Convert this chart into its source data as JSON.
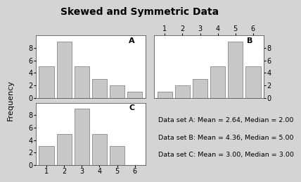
{
  "title": "Skewed and Symmetric Data",
  "bar_color": "#c8c8c8",
  "bar_edge_color": "#888888",
  "background_color": "#d4d4d4",
  "plot_background": "#ffffff",
  "categories": [
    1,
    2,
    3,
    4,
    5,
    6
  ],
  "data_A": [
    5,
    9,
    5,
    3,
    2,
    1
  ],
  "data_B": [
    1,
    2,
    3,
    5,
    9,
    5
  ],
  "data_C": [
    3,
    5,
    9,
    5,
    3,
    0
  ],
  "ylim_AB": [
    0,
    10
  ],
  "ylim_C": [
    0,
    10
  ],
  "yticks_AB": [
    0,
    2,
    4,
    6,
    8
  ],
  "yticks_C": [
    0,
    2,
    4,
    6,
    8
  ],
  "ylabel": "Frequency",
  "label_A": "A",
  "label_B": "B",
  "label_C": "C",
  "annotation_lines": [
    "Data set A: Mean = 2.64, Median = 2.00",
    "Data set B: Mean = 4.36, Median = 5.00",
    "Data set C: Mean = 3.00, Median = 3.00"
  ],
  "title_fontsize": 10,
  "label_fontsize": 8,
  "tick_fontsize": 7,
  "annot_fontsize": 6.8
}
